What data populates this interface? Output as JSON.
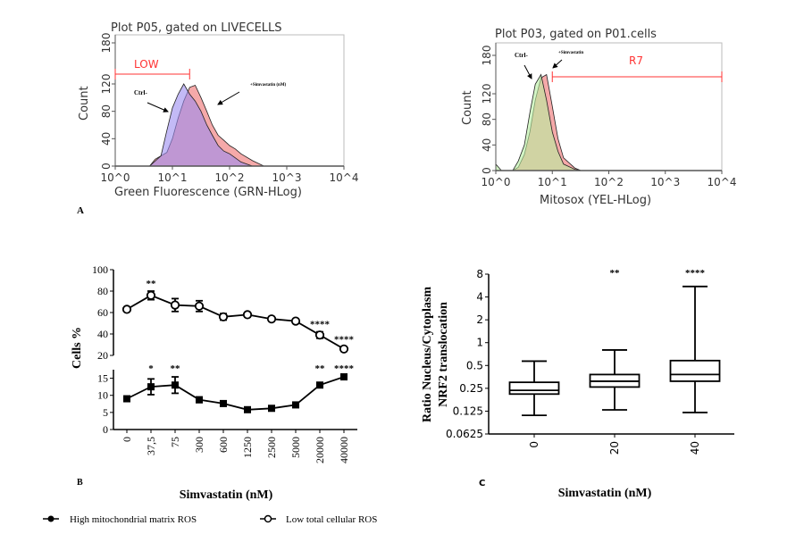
{
  "panel_labels": {
    "a": "A",
    "b": "B",
    "c": "C"
  },
  "chart_data": [
    {
      "id": "a1",
      "type": "area",
      "title": "Plot P05, gated on LIVECELLS",
      "xlabel": "Green Fluorescence (GRN-HLog)",
      "ylabel": "Count",
      "x_scale": "log10",
      "xlim": [
        1,
        10000
      ],
      "ylim": [
        0,
        190
      ],
      "x_ticks": [
        "10^0",
        "10^1",
        "10^2",
        "10^3",
        "10^4"
      ],
      "y_ticks": [
        0,
        40,
        80,
        120,
        180
      ],
      "gate": {
        "label": "LOW",
        "range": [
          1,
          20
        ],
        "color": "#ff3333"
      },
      "annotations": [
        "Ctrl-",
        "+Simvastatin (nM)"
      ],
      "series": [
        {
          "name": "+Simvastatin (nM)",
          "color": "#f4a0a0",
          "x": [
            4,
            5,
            8,
            10,
            12.6,
            15.8,
            20,
            25,
            31.6,
            40,
            50,
            63,
            79,
            100,
            126,
            158,
            251,
            398
          ],
          "y": [
            0,
            10,
            20,
            40,
            70,
            95,
            115,
            118,
            100,
            80,
            60,
            45,
            38,
            30,
            25,
            18,
            8,
            0
          ]
        },
        {
          "name": "Ctrl-",
          "color": "#9b8cf0",
          "x": [
            4,
            6.3,
            7.9,
            10,
            12.6,
            15.8,
            20,
            25,
            31.6,
            40,
            50,
            63,
            79,
            100,
            126,
            158,
            251
          ],
          "y": [
            0,
            15,
            50,
            85,
            105,
            120,
            105,
            95,
            80,
            60,
            45,
            30,
            22,
            18,
            12,
            6,
            0
          ]
        }
      ]
    },
    {
      "id": "a2",
      "type": "area",
      "title": "Plot P03, gated on P01.cells",
      "xlabel": "Mitosox (YEL-HLog)",
      "ylabel": "Count",
      "x_scale": "log10",
      "xlim": [
        1,
        10000
      ],
      "ylim": [
        0,
        190
      ],
      "x_ticks": [
        "10^0",
        "10^1",
        "10^2",
        "10^3",
        "10^4"
      ],
      "y_ticks": [
        0,
        40,
        80,
        120,
        180
      ],
      "gate": {
        "label": "R7",
        "range": [
          10,
          10000
        ],
        "color": "#ff3333"
      },
      "annotations": [
        "Ctrl-",
        "+Simvastatin"
      ],
      "series": [
        {
          "name": "+Simvastatin",
          "color": "#f4a0a0",
          "x": [
            1,
            1.26,
            2,
            2.5,
            3.2,
            4,
            5,
            6.3,
            7.9,
            10,
            12.6,
            15.8,
            25,
            32
          ],
          "y": [
            0,
            0,
            0,
            5,
            25,
            60,
            110,
            145,
            150,
            100,
            50,
            20,
            4,
            0
          ]
        },
        {
          "name": "Ctrl-",
          "color": "#b8f0a0",
          "x": [
            1,
            1.26,
            2,
            2.5,
            3.2,
            4,
            5,
            6.3,
            7.9,
            10,
            12.6,
            15.8,
            25,
            32
          ],
          "y": [
            10,
            0,
            0,
            15,
            40,
            90,
            135,
            150,
            110,
            60,
            30,
            10,
            2,
            0
          ]
        }
      ]
    },
    {
      "id": "b",
      "type": "line",
      "xlabel": "Simvastatin (nM)",
      "ylabel": "Cells %",
      "categories": [
        "0",
        "37,5",
        "75",
        "300",
        "600",
        "1250",
        "2500",
        "5000",
        "20000",
        "40000"
      ],
      "upper_ylim": [
        20,
        100
      ],
      "upper_y_ticks": [
        20,
        40,
        60,
        80,
        100
      ],
      "lower_ylim": [
        0,
        17.5
      ],
      "lower_y_ticks": [
        0,
        5,
        10,
        15
      ],
      "series": [
        {
          "name": "Low total cellular ROS",
          "marker": "open-circle",
          "panel": "upper",
          "values": [
            63,
            76,
            67,
            66,
            56,
            58,
            54,
            52,
            39,
            26
          ],
          "errors": [
            1,
            4,
            6,
            5,
            3,
            2,
            2,
            1,
            3,
            2
          ],
          "significance": [
            "",
            "**",
            "",
            "",
            "",
            "",
            "",
            "",
            "****",
            "****"
          ]
        },
        {
          "name": "High mitochondrial matrix ROS",
          "marker": "filled-square",
          "panel": "lower",
          "values": [
            9,
            12.5,
            13,
            8.7,
            7.6,
            5.8,
            6.2,
            7.2,
            13,
            15.4
          ],
          "errors": [
            0.3,
            2.3,
            2.4,
            0.8,
            0.5,
            0.4,
            0.5,
            0.5,
            0.6,
            0.8
          ],
          "significance": [
            "",
            "*",
            "**",
            "",
            "",
            "",
            "",
            "",
            "**",
            "****"
          ]
        }
      ],
      "legend": [
        {
          "label": "High mitochondrial matrix ROS",
          "marker": "filled"
        },
        {
          "label": "Low total cellular ROS",
          "marker": "open"
        }
      ],
      "legend_position": "bottom"
    },
    {
      "id": "c",
      "type": "box",
      "xlabel": "Simvastatin (nM)",
      "ylabel": [
        "Ratio Nucleus/Cytoplasm",
        "NRF2 translocation"
      ],
      "y_scale": "log2",
      "ylim": [
        0.0625,
        8
      ],
      "y_ticks": [
        "0.0625",
        "0.125",
        "0.25",
        "0.5",
        "1",
        "2",
        "4",
        "8"
      ],
      "categories": [
        "0",
        "20",
        "40"
      ],
      "boxes": [
        {
          "min": 0.11,
          "q1": 0.21,
          "median": 0.235,
          "q3": 0.3,
          "max": 0.57,
          "significance": ""
        },
        {
          "min": 0.13,
          "q1": 0.26,
          "median": 0.31,
          "q3": 0.38,
          "max": 0.8,
          "significance": "**"
        },
        {
          "min": 0.12,
          "q1": 0.31,
          "median": 0.38,
          "q3": 0.58,
          "max": 5.5,
          "significance": "****"
        }
      ]
    }
  ]
}
